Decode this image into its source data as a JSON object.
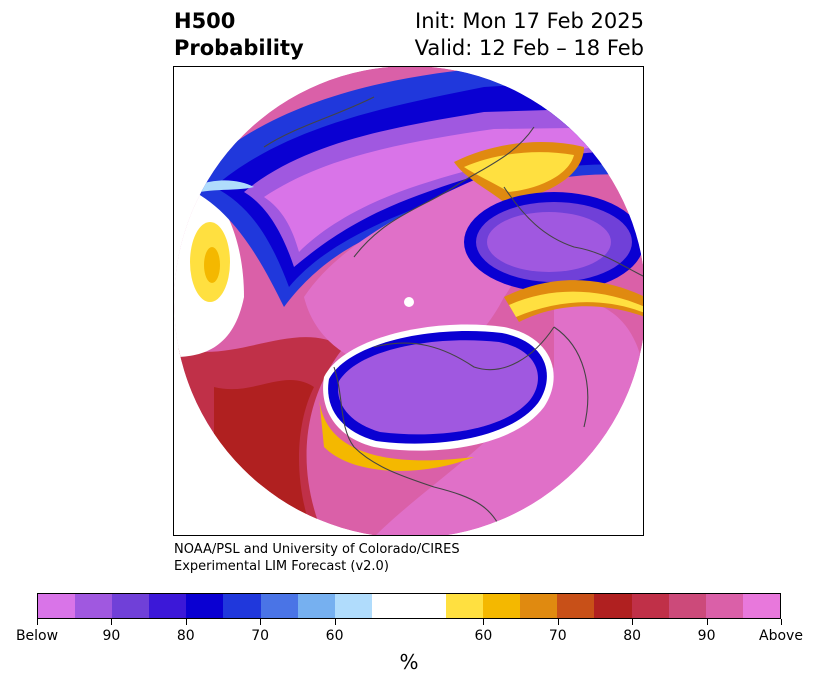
{
  "title": {
    "left_line1": "H500",
    "left_line2": "Probability",
    "right_line1": "Init: Mon 17 Feb 2025",
    "right_line2": "Valid: 12 Feb – 18 Feb"
  },
  "credit": {
    "line1": "NOAA/PSL and University of Colorado/CIRES",
    "line2": "Experimental LIM Forecast (v2.0)"
  },
  "colorbar": {
    "colors": [
      "#d974e8",
      "#a058e0",
      "#7040d8",
      "#3c18d8",
      "#0a00d2",
      "#2038dc",
      "#4a74e6",
      "#76b0f0",
      "#b0dcfc",
      "#ffffff",
      "#ffffff",
      "#ffe040",
      "#f4b800",
      "#e08a10",
      "#c85018",
      "#b02020",
      "#c03048",
      "#cc4a7a",
      "#da60a8",
      "#e878dc"
    ],
    "tick_labels": [
      "Below",
      "90",
      "80",
      "70",
      "60",
      "60",
      "70",
      "80",
      "90",
      "Above"
    ],
    "unit": "%"
  },
  "map": {
    "projection": "north-polar-stereographic",
    "content": "500 hPa height anomaly probability over the Northern Hemisphere"
  }
}
